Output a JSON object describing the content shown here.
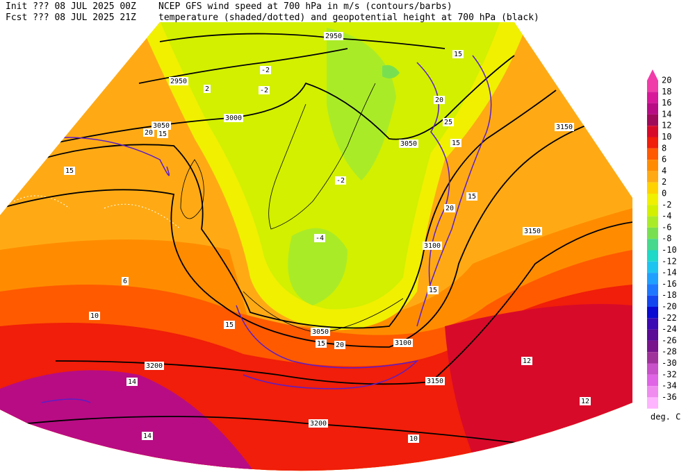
{
  "header": {
    "init": "Init  ??? 08 JUL 2025 00Z",
    "fcst": "Fcst ??? 08 JUL 2025 21Z",
    "line1": "NCEP GFS wind speed at 700 hPa in m/s (contours/barbs)",
    "line2": "temperature (shaded/dotted) and geopotential height at 700 hPa (black)"
  },
  "colorbar": {
    "unit": "deg. C",
    "ticks": [
      20,
      18,
      16,
      14,
      12,
      10,
      8,
      6,
      4,
      2,
      0,
      -2,
      -4,
      -6,
      -8,
      -10,
      -12,
      -14,
      -16,
      -18,
      -20,
      -22,
      -24,
      -26,
      -28,
      -30,
      -32,
      -34,
      -36
    ],
    "colors": [
      "#f03ca8",
      "#d8189a",
      "#b80c84",
      "#a00a5a",
      "#d80a2a",
      "#f01e0a",
      "#ff5a00",
      "#ff8c00",
      "#ffaa14",
      "#ffd200",
      "#f0f000",
      "#d2f000",
      "#aaeb28",
      "#78e050",
      "#46d88c",
      "#1ed8c8",
      "#1ec4f0",
      "#1ea0ff",
      "#1e78ff",
      "#1446f0",
      "#0a0ad2",
      "#3c0ab4",
      "#5a0a96",
      "#78148c",
      "#a0329b",
      "#c850c8",
      "#e064e6",
      "#f08cf0",
      "#ffb4ff"
    ]
  },
  "map": {
    "height_labels": [
      2950,
      2950,
      3000,
      3050,
      3100,
      3150,
      3150,
      3050,
      3050,
      3100,
      3200,
      3200,
      3150
    ],
    "wind_labels": [
      15,
      20,
      15,
      20,
      25,
      15,
      15,
      20,
      15,
      15,
      15,
      20,
      15
    ],
    "temp_labels": [
      -2,
      -2,
      2,
      6,
      10,
      14,
      14,
      12,
      10,
      -2,
      12,
      -4
    ]
  }
}
